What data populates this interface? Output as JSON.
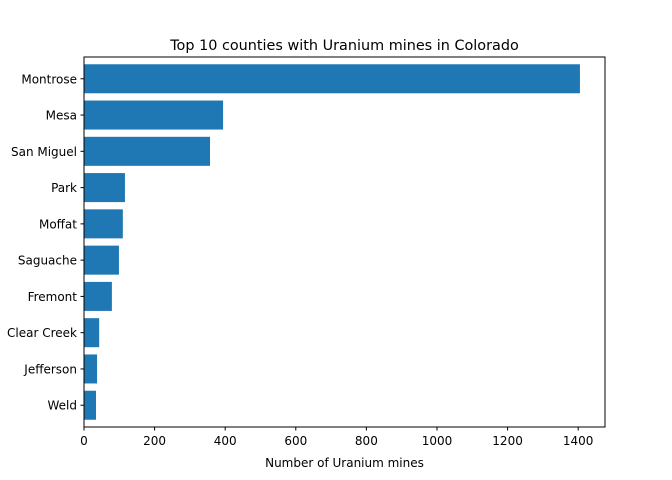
{
  "chart_data": {
    "type": "bar",
    "orientation": "horizontal",
    "title": "Top 10 counties with Uranium mines in Colorado",
    "xlabel": "Number of Uranium mines",
    "ylabel": "",
    "categories": [
      "Montrose",
      "Mesa",
      "San Miguel",
      "Park",
      "Moffat",
      "Saguache",
      "Fremont",
      "Clear Creek",
      "Jefferson",
      "Weld"
    ],
    "values": [
      1405,
      394,
      357,
      116,
      110,
      99,
      79,
      43,
      37,
      34
    ],
    "xlim": [
      0,
      1476
    ],
    "xticks": [
      0,
      200,
      400,
      600,
      800,
      1000,
      1200,
      1400
    ],
    "grid": false,
    "bar_color": "#1f77b4"
  }
}
